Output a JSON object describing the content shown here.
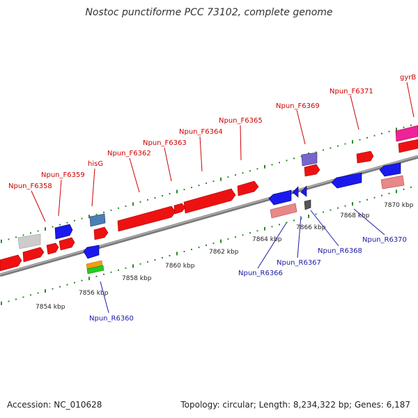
{
  "title": "Nostoc punctiforme PCC 73102, complete genome",
  "footer": {
    "accession": "Accession: NC_010628",
    "summary": "Topology: circular; Length: 8,234,322 bp; Genes: 6,187"
  },
  "colors": {
    "forward_label": "#cc0000",
    "reverse_label": "#1a1aa6",
    "backbone": "#888888",
    "tick": "#2a8a2a",
    "gene_red": "#ee1111",
    "gene_blue": "#1a1aee",
    "gene_pink": "#e88888",
    "gene_gray": "#cccccc",
    "gene_dark": "#555555",
    "gene_purple": "#7766cc",
    "gene_steel": "#4a7fb5",
    "gene_orange": "#f39c12",
    "gene_green": "#22cc22",
    "gene_magenta": "#ee2299"
  },
  "kbp_labels": [
    "7854 kbp",
    "7856 kbp",
    "7858 kbp",
    "7860 kbp",
    "7862 kbp",
    "7864 kbp",
    "7866 kbp",
    "7868 kbp",
    "7870 kbp"
  ],
  "forward_genes": [
    "Npun_F6358",
    "Npun_F6359",
    "hisG",
    "Npun_F6362",
    "Npun_F6363",
    "Npun_F6364",
    "Npun_F6365",
    "Npun_F6369",
    "Npun_F6371",
    "gyrB"
  ],
  "reverse_genes": [
    "Npun_R6360",
    "Npun_R6366",
    "Npun_R6367",
    "Npun_R6368",
    "Npun_R6370"
  ]
}
